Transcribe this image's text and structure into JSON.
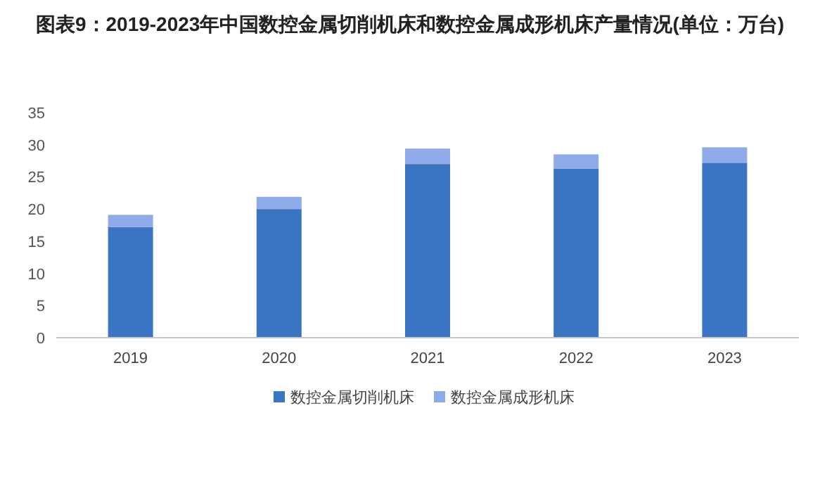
{
  "chart_data": {
    "type": "bar",
    "title": "图表9：2019-2023年中国数控金属切削机床和数控金属成形机床产量情况(单位：万台)",
    "categories": [
      "2019",
      "2020",
      "2021",
      "2022",
      "2023"
    ],
    "stacked": true,
    "series": [
      {
        "name": "数控金属切削机床",
        "color": "#3a75c4",
        "values": [
          17.2,
          20.0,
          27.0,
          26.3,
          27.2
        ]
      },
      {
        "name": "数控金属成形机床",
        "color": "#8eaae8",
        "values": [
          1.9,
          1.9,
          2.4,
          2.2,
          2.4
        ]
      }
    ],
    "ylim": [
      0,
      35
    ],
    "yticks": [
      0,
      5,
      10,
      15,
      20,
      25,
      30,
      35
    ],
    "legend": "bottom"
  }
}
